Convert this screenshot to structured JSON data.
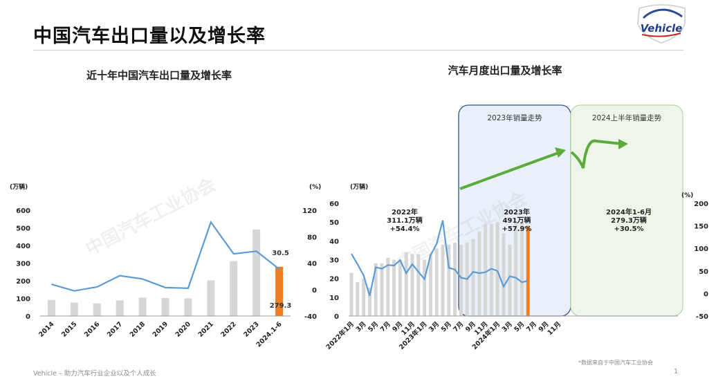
{
  "header": {
    "title": "中国汽车出口量以及增长率",
    "logo_text": "Vehicle"
  },
  "footer": {
    "left": "Vehicle – 助力汽车行业企业以及个人成长",
    "page_number": "1",
    "source": "*数据来自于中国汽车工业协会"
  },
  "colors": {
    "bar_gray": "#d6d6d6",
    "bar_highlight": "#ef7d22",
    "line_blue": "#5b9bd5",
    "arrow_green": "#5aaa3c",
    "box_blue_border": "#2f4f8f",
    "box_blue_fill": "#eaf0f9",
    "box_green_border": "#b6d7a8",
    "box_green_fill": "#eef6ea"
  },
  "chart_data": [
    {
      "type": "bar+line",
      "title": "近十年中国汽车出口量及增长率",
      "y_left_unit": "(万辆)",
      "y_right_unit": "(%)",
      "y_left_ticks": [
        "0",
        "100",
        "200",
        "300",
        "400",
        "500",
        "600"
      ],
      "y_right_ticks": [
        "-40",
        "0",
        "40",
        "80",
        "120"
      ],
      "ylim_left": [
        0,
        600
      ],
      "ylim_right": [
        -40,
        120
      ],
      "categories": [
        "2014",
        "2015",
        "2016",
        "2017",
        "2018",
        "2019",
        "2020",
        "2021",
        "2022",
        "2023",
        "2024.1-6"
      ],
      "series": [
        {
          "name": "出口量",
          "axis": "left",
          "kind": "bar",
          "values": [
            91,
            76,
            71,
            89,
            104,
            102,
            100,
            202,
            311,
            491,
            279.3
          ]
        },
        {
          "name": "增长率",
          "axis": "right",
          "kind": "line",
          "values": [
            8,
            -2,
            4,
            21,
            16,
            3,
            2,
            102,
            54,
            58,
            31
          ]
        }
      ],
      "highlight_index": 10,
      "data_labels": [
        {
          "category": "2024.1-6",
          "text": "30.5"
        },
        {
          "category": "2024.1-6",
          "text": "279.3"
        }
      ],
      "watermark": "中国汽车工业协会"
    },
    {
      "type": "bar+line",
      "title": "汽车月度出口量及增长率",
      "y_left_unit": "(万辆)",
      "y_right_unit": "(%)",
      "y_left_ticks": [
        "0",
        "10",
        "20",
        "30",
        "40",
        "50",
        "60"
      ],
      "y_right_ticks": [
        "-50",
        "0",
        "50",
        "100",
        "150",
        "200"
      ],
      "ylim_left": [
        0,
        60
      ],
      "ylim_right": [
        -50,
        200
      ],
      "tick_labels": [
        "2022年1月",
        "3月",
        "5月",
        "7月",
        "9月",
        "11月",
        "2023年1月",
        "3月",
        "5月",
        "7月",
        "9月",
        "11月",
        "2024年1月",
        "3月",
        "5月",
        "7月",
        "9月",
        "11月"
      ],
      "categories": [
        "2022-01",
        "2022-02",
        "2022-03",
        "2022-04",
        "2022-05",
        "2022-06",
        "2022-07",
        "2022-08",
        "2022-09",
        "2022-10",
        "2022-11",
        "2022-12",
        "2023-01",
        "2023-02",
        "2023-03",
        "2023-04",
        "2023-05",
        "2023-06",
        "2023-07",
        "2023-08",
        "2023-09",
        "2023-10",
        "2023-11",
        "2023-12",
        "2024-01",
        "2024-02",
        "2024-03",
        "2024-04",
        "2024-05",
        "2024-06"
      ],
      "series": [
        {
          "name": "出口量",
          "axis": "left",
          "kind": "bar",
          "values": [
            23,
            18,
            20,
            15,
            28,
            28,
            31,
            30,
            30,
            34,
            33,
            33,
            30,
            33,
            36,
            38,
            38,
            39,
            38,
            39,
            41,
            45,
            49,
            49,
            50,
            44,
            38,
            50,
            50,
            48
          ]
        },
        {
          "name": "增长率",
          "axis": "right",
          "kind": "line",
          "values": [
            88,
            65,
            40,
            -5,
            58,
            55,
            63,
            62,
            74,
            45,
            65,
            48,
            32,
            85,
            110,
            162,
            57,
            53,
            35,
            32,
            48,
            45,
            47,
            55,
            50,
            15,
            38,
            35,
            25,
            28
          ]
        }
      ],
      "highlight_index": 29,
      "annotations": [
        {
          "text": "2022年\n311.1万辆\n+54.4%"
        },
        {
          "text": "2023年\n491万辆\n+57.9%"
        },
        {
          "text": "2024年1-6月\n279.3万辆\n+30.5%"
        }
      ],
      "boxes": [
        {
          "label": "2023年销量走势"
        },
        {
          "label": "2024上半年销量走势"
        }
      ],
      "watermark": "中国汽车工业协会"
    }
  ]
}
